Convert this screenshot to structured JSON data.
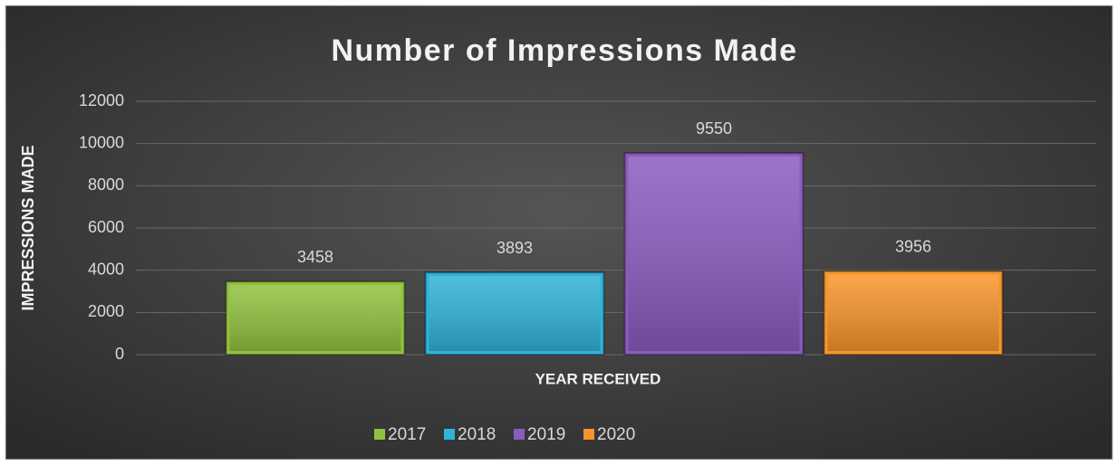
{
  "chart_data": {
    "type": "bar",
    "title": "Number of Impressions Made",
    "ylabel": "IMPRESSIONS MADE",
    "xlabel": "YEAR RECEIVED",
    "categories": [
      null
    ],
    "series": [
      {
        "name": "2017",
        "color": "#92c13e",
        "values": [
          3458
        ]
      },
      {
        "name": "2018",
        "color": "#2fb3d8",
        "values": [
          3893
        ]
      },
      {
        "name": "2019",
        "color": "#8a5cc0",
        "values": [
          9550
        ]
      },
      {
        "name": "2020",
        "color": "#f7952b",
        "values": [
          3956
        ]
      }
    ],
    "ylim": [
      0,
      12000
    ],
    "yticks": [
      0,
      2000,
      4000,
      6000,
      8000,
      10000,
      12000
    ],
    "grid": true,
    "legend": "bottom"
  }
}
